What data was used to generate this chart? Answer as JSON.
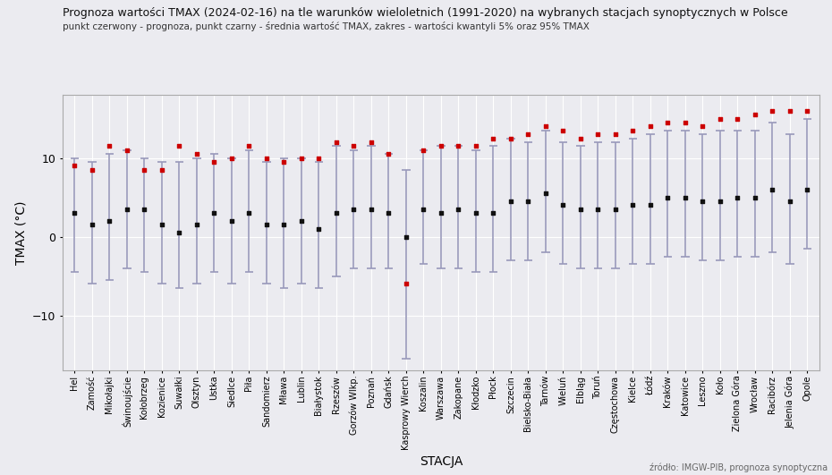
{
  "title": "Prognoza wartości TMAX (2024-02-16) na tle warunków wieloletnich (1991-2020) na wybranych stacjach synoptycznych w Polsce",
  "subtitle": "punkt czerwony - prognoza, punkt czarny - średnia wartość TMAX, zakres - wartości kwantyli 5% oraz 95% TMAX",
  "xlabel": "STACJA",
  "ylabel": "TMAX (°C)",
  "source": "źródło: IMGW-PIB, prognoza synoptyczna",
  "stations": [
    "Hel",
    "Zamość",
    "Mikołajki",
    "Świnoujście",
    "Kołobrzeg",
    "Kozienice",
    "Suwałki",
    "Olsztyn",
    "Ustka",
    "Siedlce",
    "Piła",
    "Sandomierz",
    "Mława",
    "Lublin",
    "Białystok",
    "Rzeszów",
    "Gorzów Wlkp.",
    "Poznań",
    "Gdańsk",
    "Kasprowy Wierch",
    "Koszalin",
    "Warszawa",
    "Zakopane",
    "Kłodzko",
    "Płock",
    "Szczecin",
    "Bielsko-Biała",
    "Tarnów",
    "Wieluń",
    "Elbląg",
    "Toruń",
    "Częstochowa",
    "Kielce",
    "Łódź",
    "Kraków",
    "Katowice",
    "Leszno",
    "Koło",
    "Zielona Góra",
    "Wrocław",
    "Racibórz",
    "Jelenia Góra",
    "Opole"
  ],
  "forecast": [
    9.0,
    8.5,
    11.5,
    11.0,
    8.5,
    8.5,
    11.5,
    10.5,
    9.5,
    10.0,
    11.5,
    10.0,
    9.5,
    10.0,
    10.0,
    12.0,
    11.5,
    12.0,
    10.5,
    -6.0,
    11.0,
    11.5,
    11.5,
    11.5,
    12.5,
    12.5,
    13.0,
    14.0,
    13.5,
    12.5,
    13.0,
    13.0,
    13.5,
    14.0,
    14.5,
    14.5,
    14.0,
    15.0,
    15.0,
    15.5,
    16.0,
    16.0,
    16.0
  ],
  "mean": [
    3.0,
    1.5,
    2.0,
    3.5,
    3.5,
    1.5,
    0.5,
    1.5,
    3.0,
    2.0,
    3.0,
    1.5,
    1.5,
    2.0,
    1.0,
    3.0,
    3.5,
    3.5,
    3.0,
    0.0,
    3.5,
    3.0,
    3.5,
    3.0,
    3.0,
    4.5,
    4.5,
    5.5,
    4.0,
    3.5,
    3.5,
    3.5,
    4.0,
    4.0,
    5.0,
    5.0,
    4.5,
    4.5,
    5.0,
    5.0,
    6.0,
    4.5,
    6.0
  ],
  "q05": [
    -4.5,
    -6.0,
    -5.5,
    -4.0,
    -4.5,
    -6.0,
    -6.5,
    -6.0,
    -4.5,
    -6.0,
    -4.5,
    -6.0,
    -6.5,
    -6.0,
    -6.5,
    -5.0,
    -4.0,
    -4.0,
    -4.0,
    -15.5,
    -3.5,
    -4.0,
    -4.0,
    -4.5,
    -4.5,
    -3.0,
    -3.0,
    -2.0,
    -3.5,
    -4.0,
    -4.0,
    -4.0,
    -3.5,
    -3.5,
    -2.5,
    -2.5,
    -3.0,
    -3.0,
    -2.5,
    -2.5,
    -2.0,
    -3.5,
    -1.5
  ],
  "q95": [
    10.0,
    9.5,
    10.5,
    11.0,
    10.0,
    9.5,
    9.5,
    10.0,
    10.5,
    10.0,
    11.0,
    9.5,
    10.0,
    10.0,
    9.5,
    11.5,
    11.0,
    11.5,
    10.5,
    8.5,
    11.0,
    11.5,
    11.5,
    11.0,
    11.5,
    12.5,
    12.0,
    13.5,
    12.0,
    11.5,
    12.0,
    12.0,
    12.5,
    13.0,
    13.5,
    13.5,
    13.0,
    13.5,
    13.5,
    13.5,
    14.5,
    13.0,
    15.0
  ],
  "bar_color": "#9999bb",
  "forecast_color": "#cc0000",
  "mean_color": "#111111",
  "bg_color": "#ebebf0",
  "grid_color": "#ffffff",
  "ylim": [
    -17,
    18
  ],
  "yticks": [
    -10,
    0,
    10
  ]
}
